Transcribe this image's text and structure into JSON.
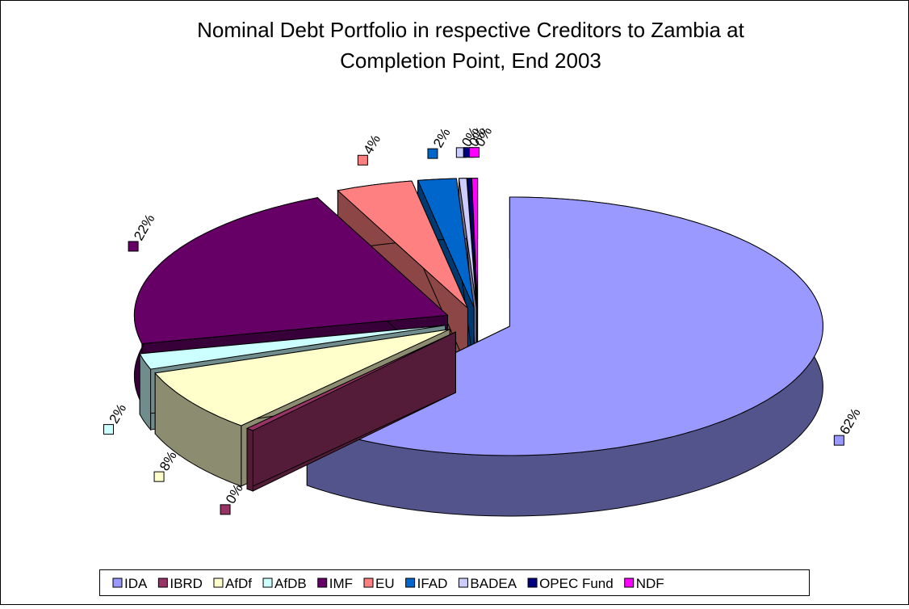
{
  "chart_data": {
    "type": "pie3d",
    "title": [
      "Nominal Debt Portfolio in respective Creditors to Zambia at",
      "Completion Point, End 2003"
    ],
    "categories": [
      "IDA",
      "IBRD",
      "AfDf",
      "AfDB",
      "IMF",
      "EU",
      "IFAD",
      "BADEA",
      "OPEC Fund",
      "NDF"
    ],
    "values": [
      62,
      0.4,
      8,
      2,
      22,
      4,
      2,
      0.4,
      0.2,
      0.3
    ],
    "value_labels": [
      "62%",
      "0%",
      "8%",
      "2%",
      "22%",
      "4%",
      "2%",
      "0%",
      "0%",
      "0%"
    ],
    "colors": [
      "#9999ff",
      "#993366",
      "#ffffcc",
      "#ccffff",
      "#660066",
      "#ff8080",
      "#0066cc",
      "#ccccff",
      "#000080",
      "#ff00ff"
    ],
    "legend": "bottom"
  }
}
